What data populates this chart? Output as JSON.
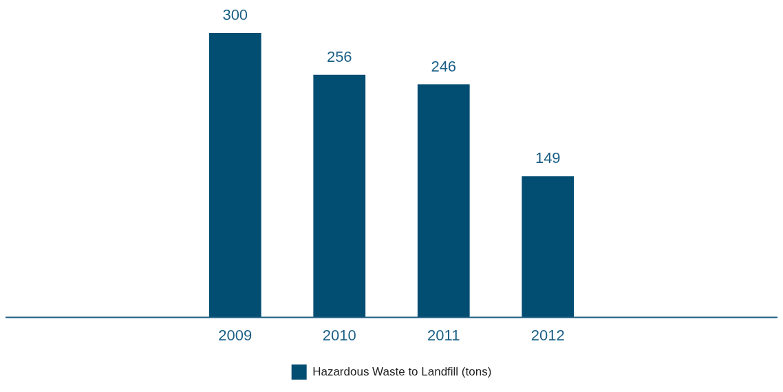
{
  "chart_data": {
    "type": "bar",
    "categories": [
      "2009",
      "2010",
      "2011",
      "2012"
    ],
    "series": [
      {
        "name": "Hazardous Waste to Landfill (tons)",
        "color": "#024d72",
        "values": [
          300,
          256,
          246,
          149
        ]
      }
    ],
    "data_labels": true,
    "legend": "bottom",
    "grid": false,
    "tick_labels": "x"
  }
}
